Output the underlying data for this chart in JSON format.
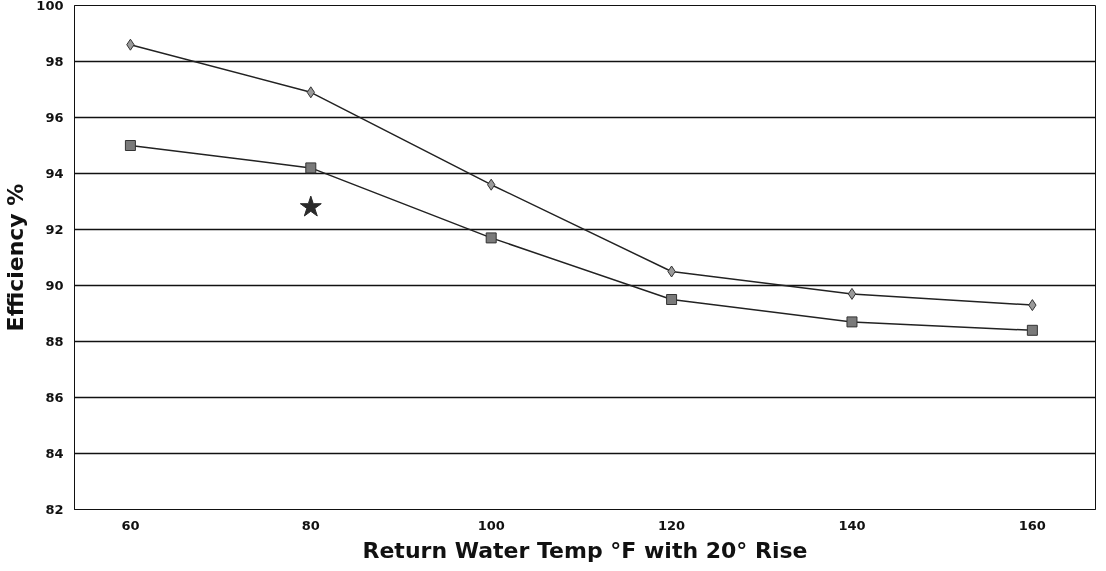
{
  "chart_data": {
    "type": "line",
    "xlabel": "Return Water Temp °F with 20° Rise",
    "ylabel": "Efficiency %",
    "x": [
      60,
      80,
      100,
      120,
      140,
      160
    ],
    "series": [
      {
        "color": "#9a9a9a",
        "marker": "diamond",
        "values": [
          98.6,
          96.9,
          93.6,
          90.5,
          89.7,
          89.3
        ]
      },
      {
        "color": "#7a7a7a",
        "marker": "square",
        "values": [
          95.0,
          94.2,
          91.7,
          89.5,
          88.7,
          88.4
        ]
      },
      {
        "type": "scatter",
        "color": "#2a2a2a",
        "marker": "star",
        "x": [
          80
        ],
        "values": [
          92.8
        ]
      }
    ],
    "xlim": [
      53.8,
      167
    ],
    "xticks": [
      60,
      80,
      100,
      120,
      140,
      160
    ],
    "ylim": [
      82,
      100
    ],
    "yticks": [
      82,
      84,
      86,
      88,
      90,
      92,
      94,
      96,
      98,
      100
    ],
    "grid": "y",
    "line_style": "solid"
  }
}
